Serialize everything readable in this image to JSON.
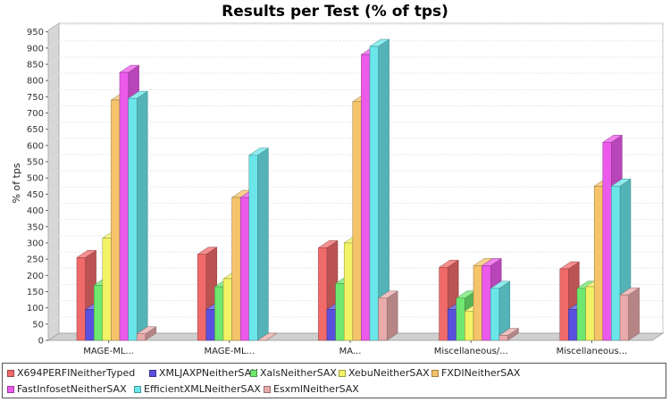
{
  "chart_data": {
    "type": "bar",
    "title": "Results per Test (% of tps)",
    "ylabel": "% of tps",
    "xlabel": "",
    "ylim": [
      0,
      960
    ],
    "yticks": [
      0,
      50,
      100,
      150,
      200,
      250,
      300,
      350,
      400,
      450,
      500,
      550,
      600,
      650,
      700,
      750,
      800,
      850,
      900,
      950
    ],
    "grid": true,
    "legend_position": "bottom",
    "categories": [
      "MAGE-ML...",
      "MAGE-ML...",
      "MA...",
      "Miscellaneous/...",
      "Miscellaneous..."
    ],
    "series": [
      {
        "name": "X694PERFINeitherTyped",
        "color": "#f06a6a",
        "values": [
          255,
          265,
          285,
          225,
          220
        ]
      },
      {
        "name": "XMLJAXPNeitherSAX",
        "color": "#5a50e0",
        "values": [
          95,
          95,
          95,
          95,
          95
        ]
      },
      {
        "name": "XalsNeitherSAX",
        "color": "#6ee86e",
        "values": [
          170,
          165,
          175,
          130,
          160
        ]
      },
      {
        "name": "XebuNeitherSAX",
        "color": "#f2f266",
        "values": [
          315,
          190,
          300,
          90,
          165
        ]
      },
      {
        "name": "FXDINeitherSAX",
        "color": "#f5c46a",
        "values": [
          740,
          440,
          735,
          230,
          475
        ]
      },
      {
        "name": "FastInfosetNeitherSAX",
        "color": "#ec5aec",
        "values": [
          825,
          440,
          880,
          230,
          610
        ]
      },
      {
        "name": "EfficientXMLNeitherSAX",
        "color": "#6ae6ea",
        "values": [
          745,
          570,
          905,
          160,
          475
        ]
      },
      {
        "name": "EsxmlNeitherSAX",
        "color": "#e8aaaa",
        "values": [
          20,
          0,
          130,
          15,
          140
        ]
      }
    ]
  }
}
